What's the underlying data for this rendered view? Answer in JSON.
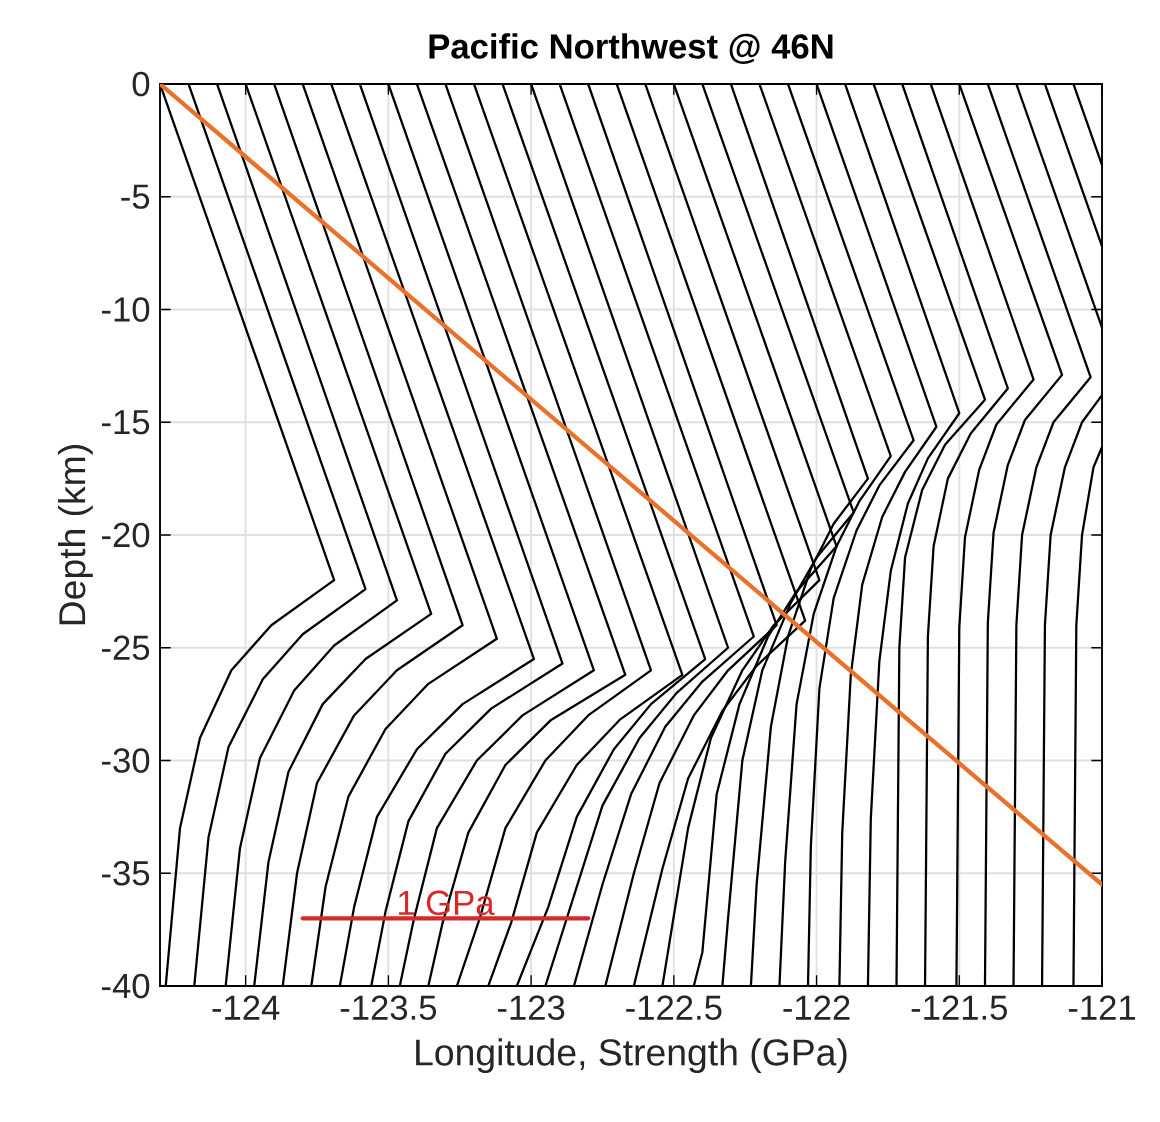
{
  "chart_data": {
    "type": "line",
    "title": "Pacific Northwest @ 46N",
    "xlabel": "Longitude, Strength (GPa)",
    "ylabel": "Depth (km)",
    "xlim": [
      -124.3,
      -121
    ],
    "ylim": [
      -40,
      0
    ],
    "xticks": [
      -124,
      -123.5,
      -123,
      -122.5,
      -122,
      -121.5,
      -121
    ],
    "yticks": [
      -40,
      -35,
      -30,
      -25,
      -20,
      -15,
      -10,
      -5,
      0
    ],
    "grid": true,
    "series": [
      {
        "color": "#000000",
        "x": [
          -124.3,
          -123.69,
          -123.91,
          -124.05,
          -124.16,
          -124.23,
          -124.28
        ],
        "values": [
          0,
          -22,
          -24,
          -26,
          -29,
          -33,
          -40
        ]
      },
      {
        "color": "#000000",
        "x": [
          -124.2,
          -123.58,
          -123.8,
          -123.94,
          -124.06,
          -124.13,
          -124.18
        ],
        "values": [
          0,
          -22.4,
          -24.4,
          -26.4,
          -29.4,
          -33.4,
          -40
        ]
      },
      {
        "color": "#000000",
        "x": [
          -124.1,
          -123.47,
          -123.69,
          -123.83,
          -123.95,
          -124.02,
          -124.07
        ],
        "values": [
          0,
          -22.9,
          -24.9,
          -26.9,
          -29.9,
          -33.9,
          -40
        ]
      },
      {
        "color": "#000000",
        "x": [
          -124.0,
          -123.35,
          -123.58,
          -123.73,
          -123.85,
          -123.92,
          -123.97
        ],
        "values": [
          0,
          -23.5,
          -25.5,
          -27.5,
          -30.5,
          -34.5,
          -40
        ]
      },
      {
        "color": "#000000",
        "x": [
          -123.9,
          -123.24,
          -123.47,
          -123.62,
          -123.75,
          -123.82,
          -123.87
        ],
        "values": [
          0,
          -24,
          -26,
          -28,
          -31,
          -35,
          -40
        ]
      },
      {
        "color": "#000000",
        "x": [
          -123.8,
          -123.12,
          -123.36,
          -123.51,
          -123.64,
          -123.72,
          -123.77
        ],
        "values": [
          0,
          -24.6,
          -26.6,
          -28.6,
          -31.6,
          -35.6,
          -40
        ]
      },
      {
        "color": "#000000",
        "x": [
          -123.7,
          -122.99,
          -123.24,
          -123.4,
          -123.54,
          -123.62,
          -123.67
        ],
        "values": [
          0,
          -25.5,
          -27.5,
          -29.5,
          -32.5,
          -36.5,
          -40
        ]
      },
      {
        "color": "#000000",
        "x": [
          -123.6,
          -122.89,
          -123.14,
          -123.3,
          -123.43,
          -123.51,
          -123.56
        ],
        "values": [
          0,
          -25.7,
          -27.7,
          -29.7,
          -32.7,
          -36.7,
          -40
        ]
      },
      {
        "color": "#000000",
        "x": [
          -123.5,
          -122.78,
          -123.03,
          -123.19,
          -123.33,
          -123.41,
          -123.46
        ],
        "values": [
          0,
          -26,
          -28,
          -30,
          -33,
          -37,
          -40
        ]
      },
      {
        "color": "#000000",
        "x": [
          -123.4,
          -122.67,
          -122.93,
          -123.09,
          -123.22,
          -123.31,
          -123.36
        ],
        "values": [
          0,
          -26.2,
          -28.2,
          -30.2,
          -33.2,
          -37.2,
          -40
        ]
      },
      {
        "color": "#000000",
        "x": [
          -123.3,
          -122.58,
          -122.8,
          -122.95,
          -123.09,
          -123.18,
          -123.26
        ],
        "values": [
          0,
          -26,
          -28,
          -30,
          -33,
          -37,
          -40
        ]
      },
      {
        "color": "#000000",
        "x": [
          -123.2,
          -122.47,
          -122.69,
          -122.84,
          -122.98,
          -123.07,
          -123.15
        ],
        "values": [
          0,
          -26.2,
          -28.2,
          -30.2,
          -33.2,
          -37.2,
          -40
        ]
      },
      {
        "color": "#000000",
        "x": [
          -123.1,
          -122.39,
          -122.58,
          -122.71,
          -122.84,
          -122.94,
          -123.05
        ],
        "values": [
          0,
          -25.5,
          -27.5,
          -29.5,
          -32.5,
          -36.5,
          -40
        ]
      },
      {
        "color": "#000000",
        "x": [
          -123.0,
          -122.31,
          -122.49,
          -122.62,
          -122.75,
          -122.85,
          -122.95
        ],
        "values": [
          0,
          -25,
          -27,
          -29,
          -32,
          -36,
          -40
        ]
      },
      {
        "color": "#000000",
        "x": [
          -122.9,
          -122.22,
          -122.4,
          -122.53,
          -122.65,
          -122.75,
          -122.85
        ],
        "values": [
          0,
          -24.5,
          -26.5,
          -28.5,
          -31.5,
          -35.5,
          -40
        ]
      },
      {
        "color": "#000000",
        "x": [
          -122.8,
          -122.14,
          -122.31,
          -122.43,
          -122.55,
          -122.64,
          -122.74
        ],
        "values": [
          0,
          -24,
          -26,
          -28,
          -31,
          -35,
          -40
        ]
      },
      {
        "color": "#000000",
        "x": [
          -122.7,
          -122.04,
          -122.21,
          -122.33,
          -122.45,
          -122.54,
          -122.64
        ],
        "values": [
          0,
          -23.8,
          -25.8,
          -27.8,
          -30.8,
          -34.8,
          -40
        ]
      },
      {
        "color": "#000000",
        "x": [
          -122.6,
          -121.99,
          -122.15,
          -122.26,
          -122.37,
          -122.45,
          -122.54
        ],
        "values": [
          0,
          -22,
          -24,
          -26,
          -29,
          -33,
          -40
        ]
      },
      {
        "color": "#000000",
        "x": [
          -122.5,
          -121.93,
          -122.07,
          -122.17,
          -122.27,
          -122.35,
          -122.4,
          -122.43
        ],
        "values": [
          0,
          -20.5,
          -22.5,
          -24.5,
          -27.5,
          -31.5,
          -38.5,
          -40
        ]
      },
      {
        "color": "#000000",
        "x": [
          -122.4,
          -121.87,
          -122.0,
          -122.09,
          -122.19,
          -122.26,
          -122.31,
          -122.33
        ],
        "values": [
          0,
          -19,
          -21,
          -23,
          -26,
          -30,
          -37,
          -40
        ]
      },
      {
        "color": "#000000",
        "x": [
          -122.3,
          -121.82,
          -121.94,
          -122.02,
          -122.1,
          -122.16,
          -122.21,
          -122.23
        ],
        "values": [
          0,
          -17.5,
          -19.5,
          -21.5,
          -24.5,
          -28.5,
          -35.5,
          -40
        ]
      },
      {
        "color": "#000000",
        "x": [
          -122.2,
          -121.74,
          -121.85,
          -121.93,
          -122.01,
          -122.07,
          -122.11,
          -122.13
        ],
        "values": [
          0,
          -16.5,
          -18.5,
          -20.5,
          -23.5,
          -27.5,
          -34.5,
          -40
        ]
      },
      {
        "color": "#000000",
        "x": [
          -122.1,
          -121.66,
          -121.78,
          -121.86,
          -121.94,
          -121.99,
          -122.02,
          -122.03
        ],
        "values": [
          0,
          -15.8,
          -17.8,
          -19.8,
          -22.8,
          -26.8,
          -33.8,
          -40
        ]
      },
      {
        "color": "#000000",
        "x": [
          -122.0,
          -121.58,
          -121.69,
          -121.77,
          -121.84,
          -121.88,
          -121.91,
          -121.92
        ],
        "values": [
          0,
          -15.2,
          -17.2,
          -19.2,
          -22.2,
          -26.2,
          -33.2,
          -40
        ]
      },
      {
        "color": "#000000",
        "x": [
          -121.9,
          -121.5,
          -121.61,
          -121.68,
          -121.74,
          -121.78,
          -121.81,
          -121.82
        ],
        "values": [
          0,
          -14.6,
          -16.6,
          -18.6,
          -21.6,
          -25.6,
          -32.6,
          -40
        ]
      },
      {
        "color": "#000000",
        "x": [
          -121.8,
          -121.41,
          -121.55,
          -121.63,
          -121.69,
          -121.71,
          -121.72
        ],
        "values": [
          0,
          -14,
          -16,
          -18,
          -21,
          -25,
          -40
        ]
      },
      {
        "color": "#000000",
        "x": [
          -121.7,
          -121.33,
          -121.46,
          -121.54,
          -121.59,
          -121.61,
          -121.62
        ],
        "values": [
          0,
          -13.5,
          -15.5,
          -17.5,
          -20.5,
          -24.5,
          -40
        ]
      },
      {
        "color": "#000000",
        "x": [
          -121.6,
          -121.24,
          -121.37,
          -121.43,
          -121.48,
          -121.5,
          -121.51
        ],
        "values": [
          0,
          -13.1,
          -15.1,
          -17.1,
          -20.1,
          -24.1,
          -40
        ]
      },
      {
        "color": "#000000",
        "x": [
          -121.5,
          -121.14,
          -121.27,
          -121.33,
          -121.38,
          -121.4,
          -121.41
        ],
        "values": [
          0,
          -12.9,
          -14.9,
          -16.9,
          -19.9,
          -23.9,
          -40
        ]
      },
      {
        "color": "#000000",
        "x": [
          -121.4,
          -121.04,
          -121.17,
          -121.23,
          -121.28,
          -121.3,
          -121.31
        ],
        "values": [
          0,
          -13,
          -15,
          -17,
          -20,
          -24,
          -40
        ]
      },
      {
        "color": "#000000",
        "x": [
          -121.3,
          -121
        ],
        "values": [
          0,
          -10.8
        ]
      },
      {
        "color": "#000000",
        "x": [
          -121,
          -121.07,
          -121.13,
          -121.18,
          -121.2,
          -121.21
        ],
        "values": [
          -13.8,
          -15,
          -17,
          -20,
          -24,
          -40
        ]
      },
      {
        "color": "#000000",
        "x": [
          -121.2,
          -121
        ],
        "values": [
          0,
          -7.2
        ]
      },
      {
        "color": "#000000",
        "x": [
          -121,
          -121.03,
          -121.07,
          -121.09,
          -121.1
        ],
        "values": [
          -16.1,
          -17,
          -20,
          -24,
          -40
        ]
      },
      {
        "color": "#000000",
        "x": [
          -121.1,
          -121
        ],
        "values": [
          0,
          -3.6
        ]
      },
      {
        "color": "#e8722c",
        "x": [
          -124.3,
          -121
        ],
        "values": [
          0,
          -35.5
        ]
      },
      {
        "name": "1 GPa",
        "color": "#d42a2a",
        "x": [
          -123.8,
          -122.8
        ],
        "values": [
          -37,
          -37
        ]
      }
    ]
  }
}
